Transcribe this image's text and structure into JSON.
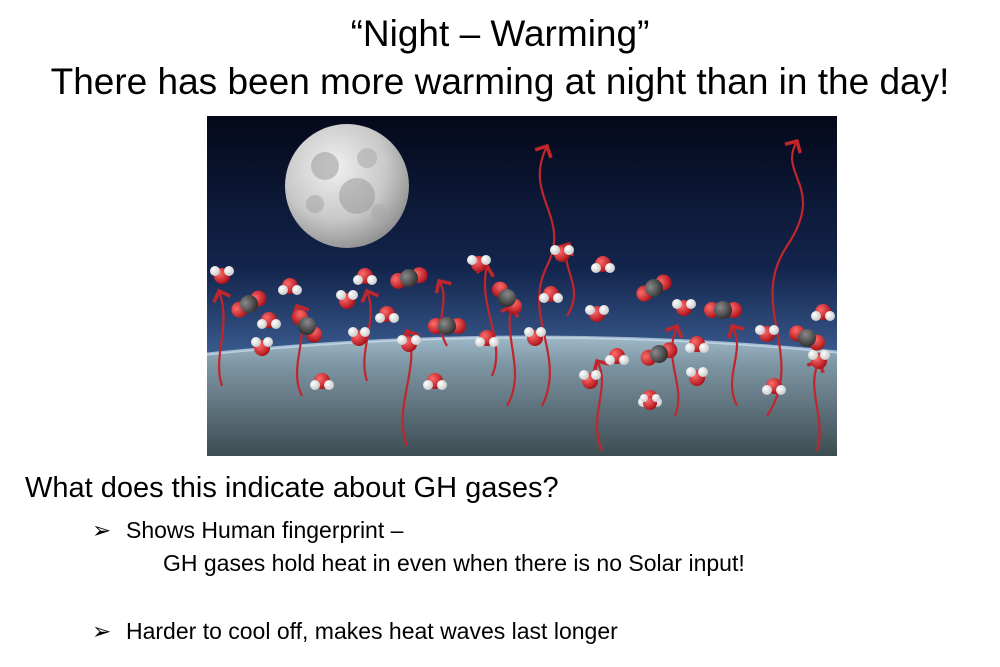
{
  "slide": {
    "title_line1": "“Night – Warming”",
    "title_line2": "There has been more warming at night than in the day!",
    "question": "What does this indicate about GH gases?",
    "bullets": [
      {
        "marker": "➢",
        "text": "Shows Human fingerprint –",
        "continuation": "GH gases hold heat in even when there is no Solar input!"
      },
      {
        "marker": "➢",
        "text": "Harder to cool off, makes heat waves last longer"
      }
    ]
  },
  "colors": {
    "sky_top": "#060a1e",
    "sky_mid": "#1d3566",
    "earth": "#6f8796",
    "heat_arrow": "#c0262b",
    "oxygen": "#d71f26",
    "hydrogen": "#ffffff",
    "carbon": "#4b4b4b"
  }
}
